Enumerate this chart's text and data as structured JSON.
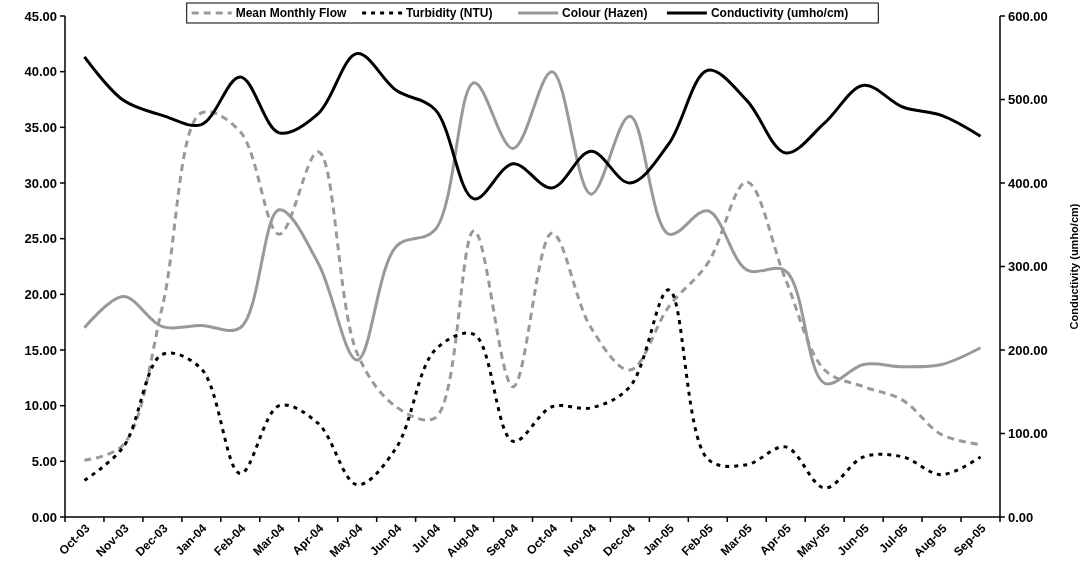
{
  "chart_data": {
    "type": "line",
    "categories": [
      "Oct-03",
      "Nov-03",
      "Dec-03",
      "Jan-04",
      "Feb-04",
      "Mar-04",
      "Apr-04",
      "May-04",
      "Jun-04",
      "Jul-04",
      "Aug-04",
      "Sep-04",
      "Oct-04",
      "Nov-04",
      "Dec-04",
      "Jan-05",
      "Feb-05",
      "Mar-05",
      "Apr-05",
      "May-05",
      "Jun-05",
      "Jul-05",
      "Aug-05",
      "Sep-05"
    ],
    "series": [
      {
        "name": "Mean Monthly Flow",
        "color": "#999999",
        "line_style": "dashed",
        "values": [
          5.1,
          6.5,
          18.9,
          36.3,
          34.6,
          25.4,
          32.8,
          14.7,
          9.9,
          8.9,
          25.7,
          11.7,
          25.5,
          17.0,
          13.2,
          18.9,
          22.8,
          30.1,
          21.3,
          13.2,
          11.7,
          10.5,
          7.4,
          6.5
        ]
      },
      {
        "name": "Turbidity (NTU)",
        "color": "#000000",
        "line_style": "dotted",
        "values": [
          3.3,
          6.3,
          14.6,
          13.3,
          3.9,
          10.0,
          8.4,
          2.9,
          6.2,
          15.0,
          16.4,
          6.8,
          9.9,
          9.8,
          11.7,
          20.4,
          5.2,
          4.7,
          6.3,
          2.6,
          5.4,
          5.4,
          3.8,
          5.4
        ]
      },
      {
        "name": "Colour (Hazen)",
        "color": "#999999",
        "line_style": "solid",
        "values": [
          17.0,
          19.8,
          17.1,
          17.2,
          17.0,
          27.6,
          22.8,
          14.1,
          24.3,
          25.8,
          39.0,
          33.1,
          40.0,
          29.0,
          36.0,
          25.4,
          27.5,
          22.2,
          22.1,
          12.0,
          13.7,
          13.5,
          13.7,
          15.2
        ]
      },
      {
        "name": "Conductivity (umho/cm)",
        "color": "#000000",
        "line_style": "solid",
        "axis": "y2",
        "values": [
          551,
          499,
          481,
          470,
          527,
          460,
          483,
          555,
          511,
          488,
          381,
          423,
          394,
          438,
          400,
          447,
          535,
          499,
          436,
          472,
          517,
          491,
          481,
          456
        ]
      }
    ],
    "ylim": [
      0,
      45
    ],
    "yticks": [
      {
        "value": 0,
        "label": "0.00"
      },
      {
        "value": 5,
        "label": "5.00"
      },
      {
        "value": 10,
        "label": "10.00"
      },
      {
        "value": 15,
        "label": "15.00"
      },
      {
        "value": 20,
        "label": "20.00"
      },
      {
        "value": 25,
        "label": "25.00"
      },
      {
        "value": 30,
        "label": "30.00"
      },
      {
        "value": 35,
        "label": "35.00"
      },
      {
        "value": 40,
        "label": "40.00"
      },
      {
        "value": 45,
        "label": "45.00"
      }
    ],
    "y2lim": [
      0,
      600
    ],
    "y2ticks": [
      {
        "value": 0,
        "label": "0.00"
      },
      {
        "value": 100,
        "label": "100.00"
      },
      {
        "value": 200,
        "label": "200.00"
      },
      {
        "value": 300,
        "label": "300.00"
      },
      {
        "value": 400,
        "label": "400.00"
      },
      {
        "value": 500,
        "label": "500.00"
      },
      {
        "value": 600,
        "label": "600.00"
      }
    ],
    "y2label": "Conductivity (umho/cm)",
    "legend": "top",
    "grid": false,
    "marker": "none"
  }
}
